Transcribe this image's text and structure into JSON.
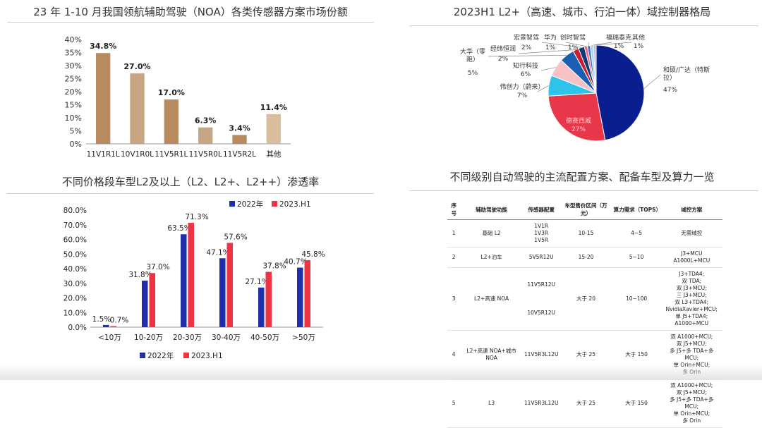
{
  "chart_data": [
    {
      "type": "bar",
      "title": "23 年 1-10 月我国领航辅助驾驶（NOA）各类传感器方案市场份额",
      "categories": [
        "11V1R1L",
        "10V1R0L",
        "11V5R1L",
        "11V5R0L",
        "11V5R2L",
        "其他"
      ],
      "values": [
        34.8,
        27.0,
        17.0,
        6.3,
        3.4,
        11.4
      ],
      "value_labels": [
        "34.8%",
        "27.0%",
        "17.0%",
        "6.3%",
        "3.4%",
        "11.4%"
      ],
      "ylim": [
        0,
        40
      ],
      "yticks": [
        "0%",
        "5%",
        "10%",
        "15%",
        "20%",
        "25%",
        "30%",
        "35%",
        "40%"
      ],
      "colors": [
        "#b88a5f",
        "#c8a582",
        "#b88a5f",
        "#c8a582",
        "#b88a5f",
        "#d9bd9c"
      ]
    },
    {
      "type": "pie",
      "title": "2023H1 L2+（高速、城市、行泊一体）域控制器格局",
      "slices": [
        {
          "label": "和硕/广达（特斯拉）",
          "value": 47,
          "pct": "47%",
          "color": "#0a1f8f"
        },
        {
          "label": "德赛西威",
          "value": 27,
          "pct": "27%",
          "color": "#e8374a"
        },
        {
          "label": "伟创力（蔚来）",
          "value": 7,
          "pct": "7%",
          "color": "#2ec4ea"
        },
        {
          "label": "知行科技",
          "value": 6,
          "pct": "6%",
          "color": "#f7c1c6"
        },
        {
          "label": "大华（零跑）",
          "value": 5,
          "pct": "5%",
          "color": "#1a5fb4"
        },
        {
          "label": "经纬恒润",
          "value": 2,
          "pct": "2%",
          "color": "#c8202f"
        },
        {
          "label": "宏景智驾",
          "value": 2,
          "pct": "2%",
          "color": "#0e3a7a"
        },
        {
          "label": "华为",
          "value": 1,
          "pct": "1%",
          "color": "#e86a78"
        },
        {
          "label": "创时智驾",
          "value": 1,
          "pct": "1%",
          "color": "#4a6fd0"
        },
        {
          "label": "福瑞泰克",
          "value": 1,
          "pct": "1%",
          "color": "#9fd7ef"
        },
        {
          "label": "其他",
          "value": 1,
          "pct": "1%",
          "color": "#b9c3d6"
        }
      ]
    },
    {
      "type": "bar",
      "title": "不同价格段车型L2及以上（L2、L2+、L2++）渗透率",
      "categories": [
        "<10万",
        "10-20万",
        "20-30万",
        "30-40万",
        "40-50万",
        ">50万"
      ],
      "series": [
        {
          "name": "2022年",
          "values": [
            1.5,
            31.8,
            63.5,
            47.1,
            27.1,
            40.7
          ],
          "labels": [
            "1.5%",
            "31.8%",
            "63.5%",
            "47.1%",
            "27.1%",
            "40.7%"
          ],
          "color": "#1f2fa8"
        },
        {
          "name": "2023.H1",
          "values": [
            0.7,
            37.0,
            71.3,
            57.6,
            37.8,
            45.8
          ],
          "labels": [
            "0.7%",
            "37.0%",
            "71.3%",
            "57.6%",
            "37.8%",
            "45.8%"
          ],
          "color": "#ee3344"
        }
      ],
      "ylim": [
        0,
        80
      ],
      "yticks": [
        "0.0%",
        "10.0%",
        "20.0%",
        "30.0%",
        "40.0%",
        "50.0%",
        "60.0%",
        "70.0%",
        "80.0%"
      ],
      "legend": "top-right and bottom"
    },
    {
      "type": "table",
      "title": "不同级别自动驾驶的主流配置方案、配备车型及算力一览",
      "columns": [
        "序号",
        "辅助驾驶功能",
        "传感器配置",
        "车型售价区间（万元）",
        "算力需求（TOPS）",
        "域控方案"
      ],
      "rows": [
        [
          "1",
          "基础 L2",
          "1V1R\n1V3R\n1V5R",
          "10-15",
          "4~5",
          "无需域控"
        ],
        [
          "2",
          "L2+泊车",
          "5V5R12U",
          "15-20",
          "5~10",
          "J3+MCU\nA1000L+MCU"
        ],
        [
          "3",
          "L2+高速 NOA",
          "11V5R12U\n\n\n\n10V5R12U",
          "大于 20",
          "10~100",
          "J3+TDA4;\n双 TDA;\n双 J3+MCU;\n三 J3+MCU;\n双 L3+TDA4;\nNvidiaXavier+MCU;\n单 J5+TDA4;\nA1000+MCU"
        ],
        [
          "4",
          "L2+高速 NOA+城市 NOA",
          "11V5R3L12U",
          "大于 25",
          "大于 150",
          "双 A1000+MCU;\n双 J5+MCU;\n多 J5+多 TDA+多 MCU;\n单 Orin+MCU;\n多 Orin"
        ],
        [
          "5",
          "L3",
          "11V5R3L12U",
          "大于 25",
          "大于 150",
          "双 A1000+MCU;\n双 J5+MCU;\n多 J5+多 TDA+多 MCU;\n单 Orin+MCU;\n多 Orin"
        ]
      ]
    }
  ]
}
